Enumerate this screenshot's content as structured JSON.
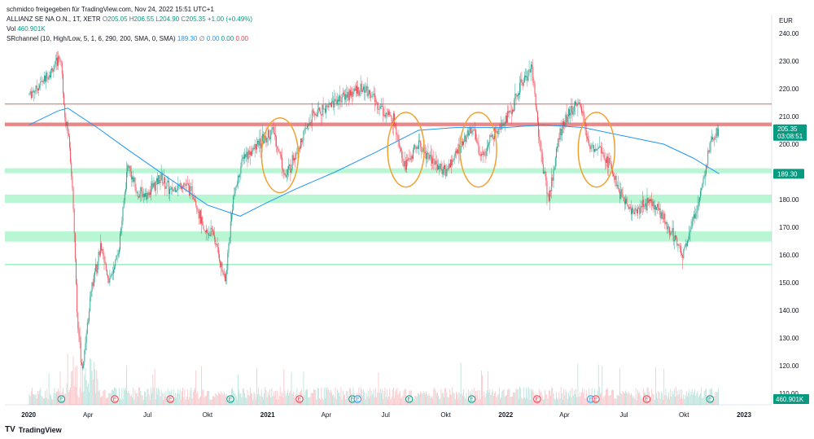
{
  "header": {
    "publisher": "schmidco freigegeben für TradingView.com, Nov 24, 2022 15:51 UTC+1",
    "symbol": "ALLIANZ SE NA O.N., 1T, XETR",
    "open_label": "O",
    "open": "205.05",
    "high_label": "H",
    "high": "206.55",
    "low_label": "L",
    "low": "204.90",
    "close_label": "C",
    "close": "205.35",
    "change": "+1.00 (+0.49%)",
    "vol_label": "Vol",
    "vol": "460.901K",
    "indicator_label": "SRchannel (10, High/Low, 5, 1, 6, 290, 200, SMA, 0, SMA)",
    "indicator_value": "189.30",
    "indicator_sym": "∅",
    "indicator_z1": "0.00",
    "indicator_z2": "0.00",
    "indicator_z3": "0.00"
  },
  "axis": {
    "currency": "EUR",
    "price_ticks": [
      "240.00",
      "230.00",
      "220.00",
      "210.00",
      "200.00",
      "190.00",
      "180.00",
      "170.00",
      "160.00",
      "150.00",
      "140.00",
      "130.00",
      "120.00",
      "110.00"
    ],
    "time_ticks": [
      "2020",
      "Apr",
      "Jul",
      "Okt",
      "2021",
      "Apr",
      "Jul",
      "Okt",
      "2022",
      "Apr",
      "Jul",
      "Okt",
      "2023"
    ]
  },
  "labels": {
    "price_tag": "205.35",
    "countdown": "03:08:51",
    "level_tag": "189.30",
    "volume_tag": "460.901K",
    "earnings_letter": "E"
  },
  "brand": {
    "name": "TradingView",
    "logo": "TV"
  },
  "colors": {
    "up": "#089981",
    "down": "#f23645",
    "ma": "#2196f3",
    "support_band": "#80f0b0",
    "resistance": "#e57373",
    "circle": "#f0a030"
  },
  "chart_data": {
    "type": "candlestick",
    "ylim": [
      108,
      245
    ],
    "price_series": [
      {
        "date": "2020-01-02",
        "price": 218
      },
      {
        "date": "2020-01-20",
        "price": 222
      },
      {
        "date": "2020-02-10",
        "price": 228
      },
      {
        "date": "2020-02-19",
        "price": 232
      },
      {
        "date": "2020-02-25",
        "price": 212
      },
      {
        "date": "2020-03-02",
        "price": 202
      },
      {
        "date": "2020-03-09",
        "price": 180
      },
      {
        "date": "2020-03-16",
        "price": 135
      },
      {
        "date": "2020-03-23",
        "price": 118
      },
      {
        "date": "2020-04-06",
        "price": 148
      },
      {
        "date": "2020-04-20",
        "price": 162
      },
      {
        "date": "2020-05-04",
        "price": 150
      },
      {
        "date": "2020-05-18",
        "price": 162
      },
      {
        "date": "2020-06-01",
        "price": 193
      },
      {
        "date": "2020-06-15",
        "price": 182
      },
      {
        "date": "2020-07-01",
        "price": 182
      },
      {
        "date": "2020-07-20",
        "price": 188
      },
      {
        "date": "2020-08-05",
        "price": 183
      },
      {
        "date": "2020-08-25",
        "price": 186
      },
      {
        "date": "2020-09-10",
        "price": 182
      },
      {
        "date": "2020-09-25",
        "price": 168
      },
      {
        "date": "2020-10-10",
        "price": 168
      },
      {
        "date": "2020-10-28",
        "price": 150
      },
      {
        "date": "2020-11-09",
        "price": 180
      },
      {
        "date": "2020-11-25",
        "price": 196
      },
      {
        "date": "2020-12-10",
        "price": 198
      },
      {
        "date": "2021-01-10",
        "price": 205
      },
      {
        "date": "2021-01-29",
        "price": 188
      },
      {
        "date": "2021-02-15",
        "price": 198
      },
      {
        "date": "2021-03-10",
        "price": 210
      },
      {
        "date": "2021-04-10",
        "price": 215
      },
      {
        "date": "2021-05-10",
        "price": 219
      },
      {
        "date": "2021-06-01",
        "price": 220
      },
      {
        "date": "2021-06-20",
        "price": 214
      },
      {
        "date": "2021-07-15",
        "price": 208
      },
      {
        "date": "2021-07-30",
        "price": 192
      },
      {
        "date": "2021-08-20",
        "price": 200
      },
      {
        "date": "2021-09-15",
        "price": 193
      },
      {
        "date": "2021-10-01",
        "price": 190
      },
      {
        "date": "2021-10-20",
        "price": 198
      },
      {
        "date": "2021-11-10",
        "price": 206
      },
      {
        "date": "2021-11-26",
        "price": 195
      },
      {
        "date": "2021-12-15",
        "price": 205
      },
      {
        "date": "2022-01-10",
        "price": 212
      },
      {
        "date": "2022-01-25",
        "price": 222
      },
      {
        "date": "2022-02-10",
        "price": 228
      },
      {
        "date": "2022-02-24",
        "price": 196
      },
      {
        "date": "2022-03-08",
        "price": 180
      },
      {
        "date": "2022-03-25",
        "price": 205
      },
      {
        "date": "2022-04-10",
        "price": 212
      },
      {
        "date": "2022-04-25",
        "price": 215
      },
      {
        "date": "2022-05-10",
        "price": 198
      },
      {
        "date": "2022-05-25",
        "price": 200
      },
      {
        "date": "2022-06-10",
        "price": 192
      },
      {
        "date": "2022-06-25",
        "price": 182
      },
      {
        "date": "2022-07-15",
        "price": 175
      },
      {
        "date": "2022-08-10",
        "price": 180
      },
      {
        "date": "2022-09-01",
        "price": 173
      },
      {
        "date": "2022-09-20",
        "price": 165
      },
      {
        "date": "2022-09-29",
        "price": 160
      },
      {
        "date": "2022-10-15",
        "price": 172
      },
      {
        "date": "2022-10-28",
        "price": 185
      },
      {
        "date": "2022-11-10",
        "price": 200
      },
      {
        "date": "2022-11-24",
        "price": 205.35
      }
    ],
    "moving_average": [
      {
        "date": "2020-01-02",
        "value": 207
      },
      {
        "date": "2020-02-15",
        "value": 212
      },
      {
        "date": "2020-03-01",
        "value": 213
      },
      {
        "date": "2020-04-15",
        "value": 206
      },
      {
        "date": "2020-06-01",
        "value": 198
      },
      {
        "date": "2020-08-01",
        "value": 188
      },
      {
        "date": "2020-10-01",
        "value": 178
      },
      {
        "date": "2020-11-20",
        "value": 174
      },
      {
        "date": "2021-01-01",
        "value": 179
      },
      {
        "date": "2021-02-15",
        "value": 184
      },
      {
        "date": "2021-04-15",
        "value": 190
      },
      {
        "date": "2021-06-15",
        "value": 197
      },
      {
        "date": "2021-08-20",
        "value": 205
      },
      {
        "date": "2021-10-15",
        "value": 206
      },
      {
        "date": "2021-12-31",
        "value": 206
      },
      {
        "date": "2022-02-28",
        "value": 207
      },
      {
        "date": "2022-04-30",
        "value": 206
      },
      {
        "date": "2022-06-30",
        "value": 203
      },
      {
        "date": "2022-08-31",
        "value": 200
      },
      {
        "date": "2022-10-15",
        "value": 195
      },
      {
        "date": "2022-11-24",
        "value": 189.3
      }
    ],
    "support_bands": [
      [
        189.5,
        191.3
      ],
      [
        178.8,
        181.8
      ],
      [
        164.8,
        168.5
      ]
    ],
    "support_lines": [
      156.5
    ],
    "resistance_lines": [
      214.5
    ],
    "resistance_bands": [
      [
        206.5,
        207.8
      ]
    ],
    "highlight_circles": [
      {
        "center_date": "2021-01-20",
        "price": 196,
        "rx_days": 28,
        "ry_price": 13.5
      },
      {
        "center_date": "2021-08-01",
        "price": 198,
        "rx_days": 28,
        "ry_price": 13.5
      },
      {
        "center_date": "2021-11-20",
        "price": 198,
        "rx_days": 28,
        "ry_price": 13.5
      },
      {
        "center_date": "2022-05-20",
        "price": 198,
        "rx_days": 28,
        "ry_price": 13.5
      }
    ],
    "earnings_events": [
      {
        "date": "2020-02-20",
        "kind": "E"
      },
      {
        "date": "2020-05-12",
        "kind": "R"
      },
      {
        "date": "2020-08-05",
        "kind": "R"
      },
      {
        "date": "2020-11-05",
        "kind": "E"
      },
      {
        "date": "2021-02-19",
        "kind": "R"
      },
      {
        "date": "2021-05-11",
        "kind": "E"
      },
      {
        "date": "2021-05-19",
        "kind": "B"
      },
      {
        "date": "2021-08-06",
        "kind": "E"
      },
      {
        "date": "2021-11-10",
        "kind": "E"
      },
      {
        "date": "2022-02-18",
        "kind": "R"
      },
      {
        "date": "2022-05-11",
        "kind": "B"
      },
      {
        "date": "2022-05-19",
        "kind": "R"
      },
      {
        "date": "2022-08-05",
        "kind": "R"
      },
      {
        "date": "2022-11-10",
        "kind": "E"
      }
    ]
  }
}
